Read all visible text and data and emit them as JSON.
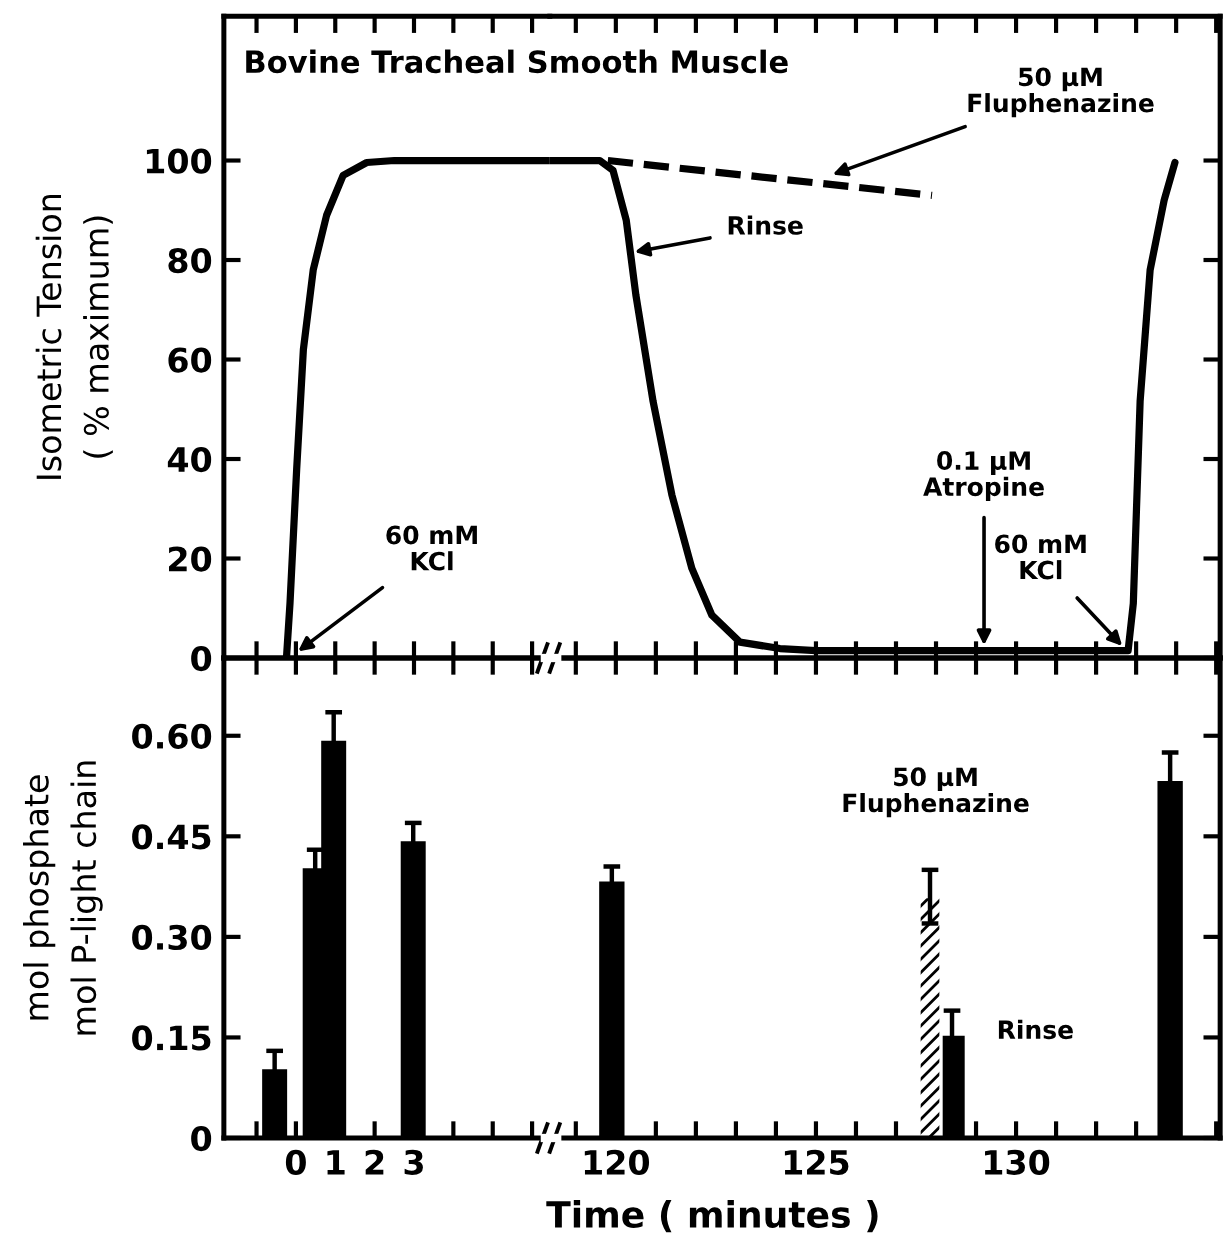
{
  "chart_data": [
    {
      "type": "line",
      "title": "Bovine Tracheal Smooth Muscle",
      "ylabel": "Isometric Tension\n( % maximum)",
      "series": [
        {
          "color": "#000000",
          "line_style": "solid",
          "x": [
            -0.24,
            -0.15,
            0.02,
            0.19,
            0.44,
            0.78,
            1.2,
            1.8,
            2.5,
            6.45
          ],
          "values": [
            0,
            11,
            38,
            62,
            78,
            89,
            97,
            99.6,
            100,
            100
          ]
        }
      ],
      "xlim": [
        -1.83,
        6.45
      ],
      "ylim": [
        0,
        129
      ],
      "xticks": [
        {
          "value": -1,
          "label": null
        },
        {
          "value": 0,
          "label": null
        },
        {
          "value": 1,
          "label": null
        },
        {
          "value": 2,
          "label": null
        },
        {
          "value": 3,
          "label": null
        },
        {
          "value": 4,
          "label": null
        },
        {
          "value": 5,
          "label": null
        },
        {
          "value": 6,
          "label": null
        }
      ],
      "yticks": [
        0,
        20,
        40,
        60,
        80,
        100
      ],
      "tick_labels": "y",
      "annotations": [
        {
          "text": "60 mM\nKCl",
          "x": 0,
          "y": 1
        }
      ]
    },
    {
      "type": "line",
      "series": [
        {
          "color": "#000000",
          "line_style": "solid",
          "x": [
            118.35,
            119.6,
            119.93,
            120.26,
            120.5,
            120.93,
            121.4,
            121.9,
            122.4,
            123.1,
            124.1,
            125,
            132.8,
            132.93,
            133.1,
            133.35,
            133.7,
            133.97
          ],
          "values": [
            100,
            100,
            98,
            88,
            73,
            51.6,
            32.8,
            18,
            8.6,
            3.2,
            1.9,
            1.5,
            1.5,
            11,
            51.6,
            78,
            92,
            99.6
          ]
        },
        {
          "color": "#000000",
          "line_style": "dashed",
          "x": [
            119.8,
            127.9
          ],
          "values": [
            100,
            93
          ]
        }
      ],
      "xlim": [
        118.35,
        135.1
      ],
      "ylim": [
        0,
        129
      ],
      "xticks": [
        {
          "value": 119,
          "label": null
        },
        {
          "value": 120,
          "label": null
        },
        {
          "value": 121,
          "label": null
        },
        {
          "value": 122,
          "label": null
        },
        {
          "value": 123,
          "label": null
        },
        {
          "value": 124,
          "label": null
        },
        {
          "value": 125,
          "label": null
        },
        {
          "value": 126,
          "label": null
        },
        {
          "value": 127,
          "label": null
        },
        {
          "value": 128,
          "label": null
        },
        {
          "value": 129,
          "label": null
        },
        {
          "value": 130,
          "label": null
        },
        {
          "value": 131,
          "label": null
        },
        {
          "value": 132,
          "label": null
        },
        {
          "value": 133,
          "label": null
        },
        {
          "value": 134,
          "label": null
        },
        {
          "value": 135,
          "label": null
        }
      ],
      "yticks": [
        {
          "value": 0,
          "label": null
        },
        {
          "value": 20,
          "label": null
        },
        {
          "value": 40,
          "label": null
        },
        {
          "value": 60,
          "label": null
        },
        {
          "value": 80,
          "label": null
        },
        {
          "value": 100,
          "label": null
        }
      ],
      "tick_labels": false,
      "annotations": [
        {
          "text": "50 μM\nFluphenazine",
          "x": 125.35,
          "y": 97
        },
        {
          "text": "Rinse",
          "x": 120.4,
          "y": 81.5
        },
        {
          "text": "0.1 μM\nAtropine",
          "x": 129.2,
          "y": 2
        },
        {
          "text": "60 mM\nKCl",
          "x": 132.7,
          "y": 2
        }
      ]
    },
    {
      "type": "bar",
      "ylabel": "mol phosphate\nmol P-light chain",
      "series": [
        {
          "color": "#000000",
          "x": [
            -0.54,
            0.49,
            0.96,
            2.98
          ],
          "values": [
            0.1,
            0.4,
            0.59,
            0.44
          ],
          "errors": [
            0.03,
            0.03,
            0.045,
            0.03
          ]
        }
      ],
      "xlim": [
        -1.83,
        6.45
      ],
      "ylim": [
        0,
        0.716
      ],
      "xticks": [
        {
          "value": -1,
          "label": null
        },
        0,
        1,
        2,
        3,
        {
          "value": 4,
          "label": null
        },
        {
          "value": 5,
          "label": null
        },
        {
          "value": 6,
          "label": null
        }
      ],
      "yticks": [
        0,
        0.15,
        {
          "value": 0.3,
          "label": "0.30"
        },
        0.45,
        {
          "value": 0.6,
          "label": "0.60"
        }
      ]
    },
    {
      "type": "bar",
      "xlabel": "Time ( minutes )",
      "series": [
        {
          "color": "#000000",
          "x": [
            119.9,
            128.4,
            133.85
          ],
          "values": [
            0.38,
            0.15,
            0.53
          ],
          "errors": [
            0.025,
            0.04,
            0.045
          ]
        },
        {
          "color": "#ffffff",
          "x": [
            127.85
          ],
          "values": [
            0.36
          ],
          "errors": [
            0.04
          ]
        }
      ],
      "xlim": [
        118.35,
        135.1
      ],
      "ylim": [
        0,
        0.716
      ],
      "xticks": [
        {
          "value": 119,
          "label": null
        },
        120,
        {
          "value": 121,
          "label": null
        },
        {
          "value": 122,
          "label": null
        },
        {
          "value": 123,
          "label": null
        },
        {
          "value": 124,
          "label": null
        },
        125,
        {
          "value": 126,
          "label": null
        },
        {
          "value": 127,
          "label": null
        },
        {
          "value": 128,
          "label": null
        },
        {
          "value": 129,
          "label": null
        },
        130,
        {
          "value": 131,
          "label": null
        },
        {
          "value": 132,
          "label": null
        },
        {
          "value": 133,
          "label": null
        },
        {
          "value": 134,
          "label": null
        },
        {
          "value": 135,
          "label": null
        }
      ],
      "yticks": [
        {
          "value": 0,
          "label": null
        },
        {
          "value": 0.15,
          "label": null
        },
        {
          "value": 0.3,
          "label": null
        },
        {
          "value": 0.45,
          "label": null
        },
        {
          "value": 0.6,
          "label": null
        }
      ],
      "tick_labels": "x",
      "annotations": [
        {
          "text": "50 μM\nFluphenazine",
          "x": 127.85,
          "y": 0.4
        },
        {
          "text": "Rinse",
          "x": 128.4,
          "y": 0.15
        }
      ]
    }
  ]
}
